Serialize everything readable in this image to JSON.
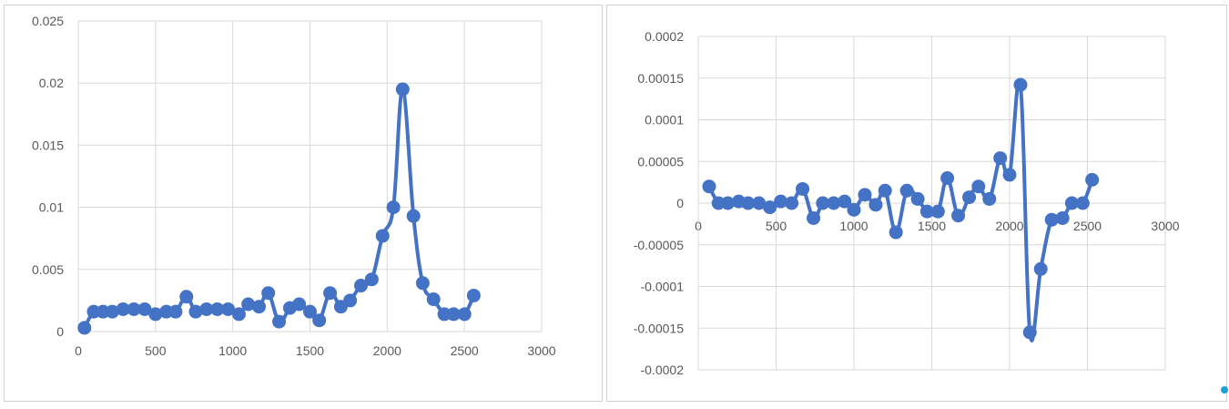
{
  "colors": {
    "series": "#4472C4",
    "grid": "#d9d9d9",
    "tick": "#595959"
  },
  "chart_data": [
    {
      "type": "line",
      "title": "",
      "xlabel": "",
      "ylabel": "",
      "grid": true,
      "xlim": [
        0,
        3000
      ],
      "ylim": [
        0,
        0.025
      ],
      "x_ticks": [
        "0",
        "500",
        "1000",
        "1500",
        "2000",
        "2500",
        "3000"
      ],
      "y_ticks": [
        "0",
        "0.005",
        "0.01",
        "0.015",
        "0.02",
        "0.025"
      ],
      "series": [
        {
          "x": [
            40,
            100,
            160,
            220,
            290,
            360,
            430,
            500,
            570,
            630,
            700,
            760,
            830,
            900,
            970,
            1040,
            1100,
            1170,
            1230,
            1300,
            1370,
            1430,
            1500,
            1560,
            1630,
            1700,
            1760,
            1830,
            1900,
            1970,
            2040,
            2100,
            2170,
            2230,
            2300,
            2370,
            2430,
            2500,
            2560
          ],
          "y": [
            0.0003,
            0.0016,
            0.0016,
            0.0016,
            0.0018,
            0.0018,
            0.0018,
            0.0014,
            0.0016,
            0.0016,
            0.0028,
            0.0016,
            0.0018,
            0.0018,
            0.0018,
            0.0014,
            0.0022,
            0.002,
            0.0031,
            0.0008,
            0.0019,
            0.0022,
            0.0016,
            0.0009,
            0.0031,
            0.002,
            0.0025,
            0.0037,
            0.0042,
            0.0077,
            0.01,
            0.0195,
            0.0093,
            0.0039,
            0.0026,
            0.0014,
            0.0014,
            0.0014,
            0.0029
          ]
        }
      ]
    },
    {
      "type": "line",
      "title": "",
      "xlabel": "",
      "ylabel": "",
      "grid": true,
      "xlim": [
        0,
        3000
      ],
      "ylim": [
        -0.0002,
        0.0002
      ],
      "x_ticks": [
        "0",
        "500",
        "1000",
        "1500",
        "2000",
        "2500",
        "3000"
      ],
      "y_ticks": [
        "0.0002",
        "0.00015",
        "0.0001",
        "0.00005",
        "0",
        "-0.00005",
        "-0.0001",
        "-0.00015",
        "-0.0002"
      ],
      "series": [
        {
          "x": [
            70,
            130,
            190,
            260,
            320,
            390,
            460,
            530,
            600,
            670,
            740,
            800,
            870,
            940,
            1000,
            1070,
            1140,
            1200,
            1270,
            1340,
            1410,
            1470,
            1540,
            1600,
            1670,
            1740,
            1800,
            1870,
            1940,
            2000,
            2070,
            2130,
            2200,
            2270,
            2340,
            2400,
            2470,
            2530
          ],
          "y": [
            2e-05,
            0.0,
            0.0,
            2e-06,
            0.0,
            0.0,
            -5e-06,
            2e-06,
            0.0,
            1.7e-05,
            -1.8e-05,
            0.0,
            0.0,
            2e-06,
            -8e-06,
            1e-05,
            -2e-06,
            1.5e-05,
            -3.5e-05,
            1.5e-05,
            5e-06,
            -1e-05,
            -1e-05,
            3e-05,
            -1.5e-05,
            7e-06,
            2e-05,
            5e-06,
            5.4e-05,
            3.4e-05,
            0.000142,
            -0.000155,
            -7.9e-05,
            -2e-05,
            -1.8e-05,
            0.0,
            0.0,
            2.8e-05
          ]
        }
      ]
    }
  ]
}
